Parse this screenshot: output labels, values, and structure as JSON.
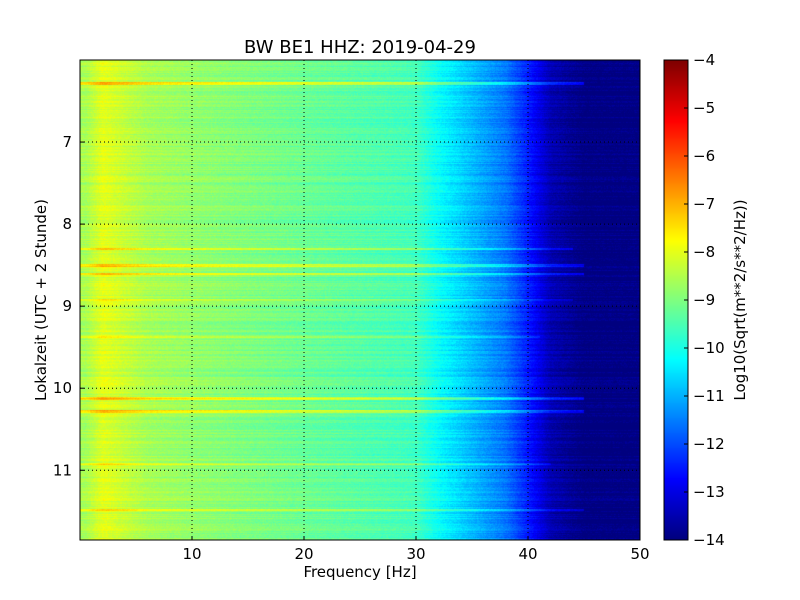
{
  "chart_data": {
    "type": "heatmap",
    "title": "BW BE1 HHZ: 2019-04-29",
    "xlabel": "Frequency [Hz]",
    "ylabel": "Lokalzeit (UTC + 2 Stunde)",
    "xlim": [
      0,
      50
    ],
    "ylim": [
      11.85,
      6.0
    ],
    "x_ticks": [
      10,
      20,
      30,
      40,
      50
    ],
    "y_ticks": [
      7,
      8,
      9,
      10,
      11
    ],
    "grid": true,
    "colormap": "jet",
    "colorbar": {
      "label": "Log10(Sqrt(m**2/s**2/Hz))",
      "range": [
        -14,
        -4
      ],
      "ticks": [
        -4,
        -5,
        -6,
        -7,
        -8,
        -9,
        -10,
        -11,
        -12,
        -13,
        -14
      ]
    },
    "spectral_profile": {
      "frequency_hz": [
        0.5,
        2,
        4,
        6,
        10,
        15,
        20,
        25,
        30,
        32,
        35,
        38,
        40,
        42,
        45,
        50
      ],
      "value": [
        -8.6,
        -8.0,
        -8.3,
        -8.6,
        -8.8,
        -9.0,
        -9.2,
        -9.4,
        -9.6,
        -10.2,
        -10.9,
        -11.6,
        -12.5,
        -13.5,
        -14,
        -14
      ]
    },
    "bright_bands": [
      {
        "time": 6.28,
        "fmax": 45,
        "offset": 1.2
      },
      {
        "time": 8.3,
        "fmax": 44,
        "offset": 0.8
      },
      {
        "time": 8.5,
        "fmax": 45,
        "offset": 1.0
      },
      {
        "time": 8.6,
        "fmax": 45,
        "offset": 1.1
      },
      {
        "time": 8.92,
        "fmax": 44,
        "offset": 0.6
      },
      {
        "time": 9.37,
        "fmax": 41,
        "offset": 0.5
      },
      {
        "time": 10.12,
        "fmax": 45,
        "offset": 1.1
      },
      {
        "time": 10.28,
        "fmax": 45,
        "offset": 1.2
      },
      {
        "time": 10.92,
        "fmax": 42,
        "offset": 0.6
      },
      {
        "time": 11.48,
        "fmax": 45,
        "offset": 1.0
      }
    ]
  }
}
